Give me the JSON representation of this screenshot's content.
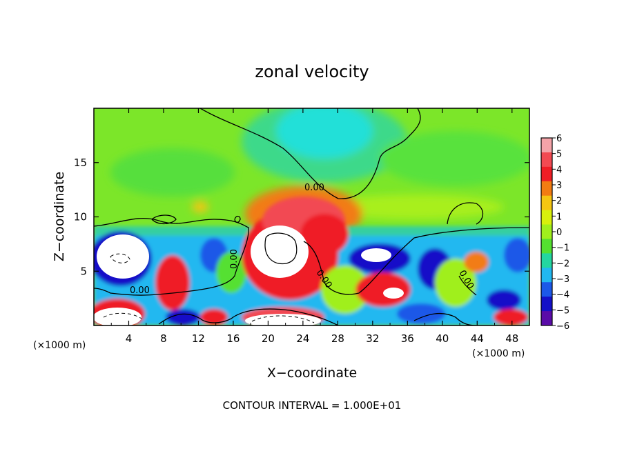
{
  "chart_data": {
    "type": "heatmap",
    "title": "zonal velocity",
    "xlabel": "X−coordinate",
    "ylabel": "Z−coordinate",
    "x_unit_left": "(×1000 m)",
    "x_unit_right": "(×1000 m)",
    "xlim": [
      0,
      50
    ],
    "ylim": [
      0,
      20
    ],
    "x_ticks": [
      4,
      8,
      12,
      16,
      20,
      24,
      28,
      32,
      36,
      40,
      44,
      48
    ],
    "y_ticks": [
      5,
      10,
      15
    ],
    "colorbar": {
      "min": -6,
      "max": 6,
      "tick_labels": [
        "6",
        "5",
        "4",
        "3",
        "2",
        "1",
        "0",
        "−1",
        "−2",
        "−3",
        "−4",
        "−5",
        "−6"
      ],
      "colors": [
        "#f4a3a8",
        "#f24a52",
        "#ef1d25",
        "#f27c12",
        "#f5c612",
        "#d8f00c",
        "#a0ef1c",
        "#54e030",
        "#24d6a0",
        "#22b8f0",
        "#1c58e8",
        "#1410c8",
        "#5a0ca8"
      ]
    },
    "contour_labels": [
      "0.00",
      "0.00",
      "0.00",
      "0.00",
      "0.00"
    ],
    "footer": "CONTOUR INTERVAL = 1.000E+01"
  }
}
